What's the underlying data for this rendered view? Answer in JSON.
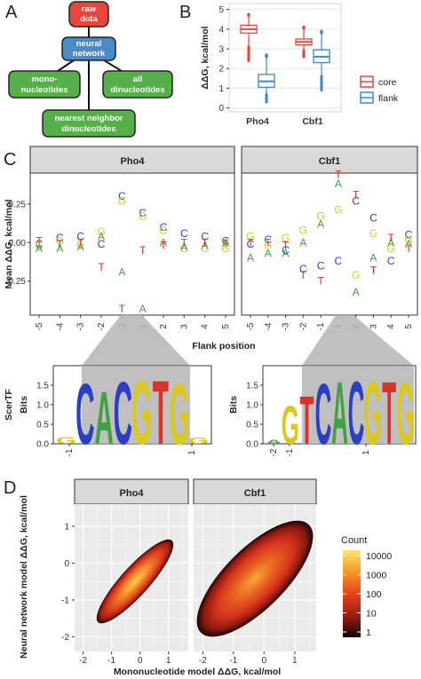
{
  "panel_labels": [
    "A",
    "B",
    "C",
    "D"
  ],
  "panel_a": {
    "nodes": [
      "raw data",
      "neural network",
      "mono-nucleotides",
      "all dinucleotides",
      "nearest neighbor dinucleotides"
    ],
    "colors": {
      "red": "#e8463c",
      "blue": "#4a8ac6",
      "green": "#56b04a"
    }
  },
  "chart_data": [
    {
      "type": "box",
      "panel": "B",
      "categories": [
        "Pho4",
        "Cbf1"
      ],
      "series": [
        {
          "name": "core",
          "color": "#e04a3e",
          "values": [
            {
              "min": 2.4,
              "q1": 3.8,
              "median": 4.0,
              "q3": 4.2,
              "max": 4.75
            },
            {
              "min": 2.6,
              "q1": 3.2,
              "median": 3.35,
              "q3": 3.5,
              "max": 4.1
            }
          ]
        },
        {
          "name": "flank",
          "color": "#3f8ac6",
          "values": [
            {
              "min": 0.3,
              "q1": 1.05,
              "median": 1.35,
              "q3": 1.7,
              "max": 2.7
            },
            {
              "min": 0.9,
              "q1": 2.3,
              "median": 2.6,
              "q3": 2.95,
              "max": 3.9
            }
          ]
        }
      ],
      "ylabel": "ΔΔG, kcal/mol",
      "yticks": [
        0,
        1,
        2,
        3,
        4,
        5
      ],
      "ylim": [
        -0.2,
        5.3
      ],
      "legend": "right"
    },
    {
      "type": "scatter",
      "panel": "C",
      "facets": [
        "Pho4",
        "Cbf1"
      ],
      "xlabel": "Flank position",
      "ylabel": "Mean ΔΔG, kcal/mol",
      "xtick_labels": [
        "-5",
        "-4",
        "-3",
        "-2",
        "-1",
        "1",
        "2",
        "3",
        "4",
        "5"
      ],
      "yticks": [
        "-0.25",
        "0.00",
        "0.25"
      ],
      "ylim_reversed": [
        -0.45,
        0.47
      ],
      "base_colors": {
        "A": "#43a047",
        "C": "#2a3fc4",
        "G": "#d8c820",
        "T": "#d8322a"
      },
      "points": [
        [
          [
            [
              "C",
              0.01
            ],
            [
              "G",
              0.02
            ],
            [
              "A",
              0.04
            ],
            [
              "T",
              -0.01
            ]
          ],
          [
            [
              "C",
              -0.03
            ],
            [
              "G",
              -0.01
            ],
            [
              "A",
              0.04
            ],
            [
              "T",
              0.01
            ]
          ],
          [
            [
              "C",
              -0.04
            ],
            [
              "G",
              0.01
            ],
            [
              "A",
              0.03
            ],
            [
              "T",
              0.0
            ]
          ],
          [
            [
              "C",
              0.01
            ],
            [
              "G",
              -0.07
            ],
            [
              "A",
              -0.04
            ],
            [
              "T",
              0.16
            ]
          ],
          [
            [
              "C",
              -0.3
            ],
            [
              "G",
              -0.27
            ],
            [
              "A",
              0.19
            ],
            [
              "T",
              0.43
            ]
          ],
          [
            [
              "C",
              -0.19
            ],
            [
              "G",
              -0.17
            ],
            [
              "A",
              0.43
            ],
            [
              "T",
              0.05
            ]
          ],
          [
            [
              "C",
              -0.1
            ],
            [
              "G",
              -0.08
            ],
            [
              "A",
              0.0
            ],
            [
              "T",
              0.02
            ]
          ],
          [
            [
              "C",
              -0.06
            ],
            [
              "G",
              0.04
            ],
            [
              "A",
              0.03
            ],
            [
              "T",
              0.0
            ]
          ],
          [
            [
              "C",
              -0.04
            ],
            [
              "G",
              0.04
            ],
            [
              "A",
              0.02
            ],
            [
              "T",
              0.0
            ]
          ],
          [
            [
              "C",
              -0.01
            ],
            [
              "G",
              0.04
            ],
            [
              "A",
              0.0
            ],
            [
              "T",
              0.01
            ]
          ]
        ],
        [
          [
            [
              "C",
              0.01
            ],
            [
              "G",
              -0.04
            ],
            [
              "A",
              0.1
            ],
            [
              "T",
              0.0
            ]
          ],
          [
            [
              "C",
              -0.02
            ],
            [
              "G",
              0.02
            ],
            [
              "A",
              0.07
            ],
            [
              "T",
              0.0
            ]
          ],
          [
            [
              "C",
              0.05
            ],
            [
              "G",
              -0.03
            ],
            [
              "A",
              0.07
            ],
            [
              "T",
              0.02
            ]
          ],
          [
            [
              "C",
              0.17
            ],
            [
              "G",
              -0.08
            ],
            [
              "A",
              0.0
            ],
            [
              "T",
              0.21
            ]
          ],
          [
            [
              "C",
              0.15
            ],
            [
              "G",
              -0.17
            ],
            [
              "A",
              -0.12
            ],
            [
              "T",
              0.25
            ]
          ],
          [
            [
              "C",
              0.12
            ],
            [
              "G",
              -0.21
            ],
            [
              "A",
              -0.38
            ],
            [
              "T",
              -0.44
            ]
          ],
          [
            [
              "C",
              -0.27
            ],
            [
              "G",
              0.21
            ],
            [
              "A",
              0.32
            ],
            [
              "T",
              -0.31
            ]
          ],
          [
            [
              "C",
              -0.16
            ],
            [
              "G",
              -0.06
            ],
            [
              "A",
              0.1
            ],
            [
              "T",
              0.18
            ]
          ],
          [
            [
              "C",
              0.12
            ],
            [
              "G",
              0.04
            ],
            [
              "A",
              0.0
            ],
            [
              "T",
              -0.03
            ]
          ],
          [
            [
              "C",
              -0.05
            ],
            [
              "G",
              -0.02
            ],
            [
              "A",
              0.01
            ],
            [
              "T",
              0.04
            ]
          ]
        ]
      ],
      "logo_ylabel": "ScerTF",
      "logo_axis": "Bits",
      "logo_yticks": [
        "0.0",
        "0.5",
        "1.0",
        "1.5"
      ],
      "logo_pho4": {
        "ticks": [
          "-1",
          "1"
        ],
        "letters": [
          [
            "G",
            0.22
          ],
          [
            "C",
            1.9
          ],
          [
            "A",
            1.65
          ],
          [
            "C",
            1.95
          ],
          [
            "G",
            1.98
          ],
          [
            "T",
            1.99
          ],
          [
            "G",
            1.9
          ],
          [
            "G",
            0.2
          ]
        ]
      },
      "logo_cbf1": {
        "ticks": [
          "-2",
          "-1",
          "1"
        ],
        "letters": [
          [
            "A",
            0.12
          ],
          [
            "G",
            1.2
          ],
          [
            "T",
            1.5
          ],
          [
            "C",
            1.9
          ],
          [
            "A",
            1.95
          ],
          [
            "C",
            1.97
          ],
          [
            "G",
            1.97
          ],
          [
            "T",
            1.95
          ],
          [
            "G",
            1.94
          ]
        ]
      }
    },
    {
      "type": "heatmap",
      "panel": "D",
      "facets": [
        "Pho4",
        "Cbf1"
      ],
      "xlabel": "Mononucleotide model ΔΔG, kcal/mol",
      "ylabel": "Neural network model ΔΔG, kcal/mol",
      "xticks": [
        -2,
        -1,
        0,
        1
      ],
      "yticks": [
        1,
        0,
        -1,
        -2
      ],
      "xlim": [
        -2.3,
        1.7
      ],
      "ylim": [
        -2.4,
        1.6
      ],
      "legend_title": "Count",
      "legend_labels": [
        "10000",
        "1000",
        "100",
        "10",
        "1"
      ]
    }
  ]
}
